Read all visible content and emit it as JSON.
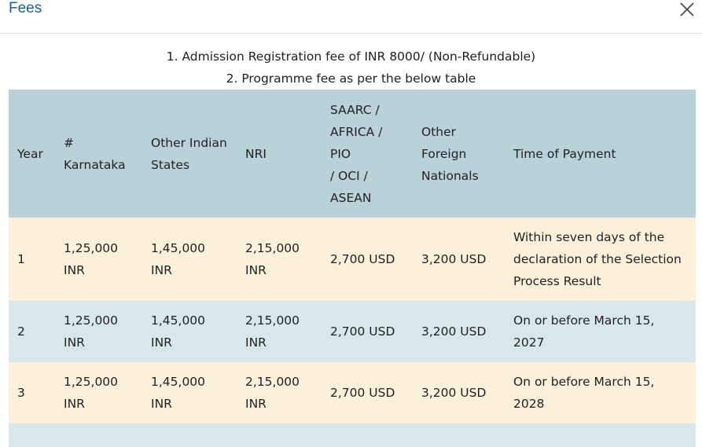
{
  "modal": {
    "title": "Fees",
    "close_icon": "close-icon"
  },
  "notes": [
    "1. Admission Registration fee of INR 8000/ (Non-Refundable)",
    "2. Programme fee as per the below table"
  ],
  "table": {
    "headers": {
      "year": "Year",
      "karnataka": "#\nKarnataka",
      "other_indian": "Other Indian\nStates",
      "nri": "NRI",
      "saarc": "SAARC /\nAFRICA /\nPIO\n/ OCI /\nASEAN",
      "foreign": "Other\nForeign\nNationals",
      "time": "Time of Payment"
    },
    "rows": [
      {
        "year": "1",
        "karnataka": "1,25,000\nINR",
        "other_indian": "1,45,000\nINR",
        "nri": "2,15,000\nINR",
        "saarc": "2,700 USD",
        "foreign": "3,200 USD",
        "time": "Within seven days of the\ndeclaration of the Selection\nProcess Result"
      },
      {
        "year": "2",
        "karnataka": "1,25,000\nINR",
        "other_indian": "1,45,000\nINR",
        "nri": "2,15,000\nINR",
        "saarc": "2,700 USD",
        "foreign": "3,200 USD",
        "time": "On or before March 15,\n2027"
      },
      {
        "year": "3",
        "karnataka": "1,25,000\nINR",
        "other_indian": "1,45,000\nINR",
        "nri": "2,15,000\nINR",
        "saarc": "2,700 USD",
        "foreign": "3,200 USD",
        "time": "On or before March 15,\n2028"
      }
    ]
  },
  "colors": {
    "title": "#1f5fa0",
    "header_bg": "#b9d1d8",
    "row_odd_bg": "#fdf0da",
    "row_even_bg": "#d9e7ec"
  }
}
